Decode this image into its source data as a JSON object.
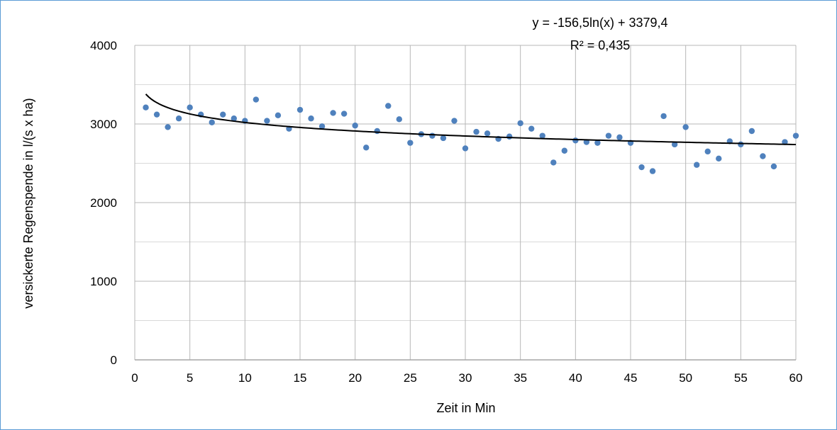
{
  "chart_data": {
    "type": "scatter",
    "xlabel": "Zeit in Min",
    "ylabel": "versickerte Regenspende in l/(s  x ha)",
    "xlim": [
      0,
      60
    ],
    "ylim": [
      0,
      4000
    ],
    "x_ticks": [
      0,
      5,
      10,
      15,
      20,
      25,
      30,
      35,
      40,
      45,
      50,
      55,
      60
    ],
    "y_ticks": [
      0,
      1000,
      2000,
      3000,
      4000
    ],
    "grid": true,
    "legend": "none",
    "marker_color": "#4f81bd",
    "trendline": {
      "type": "logarithmic",
      "a": -156.5,
      "b": 3379.4,
      "equation_label": "y = -156,5ln(x) + 3379,4",
      "r2_label": "R² = 0,435"
    },
    "series": [
      {
        "x": [
          1,
          2,
          3,
          4,
          5,
          6,
          7,
          8,
          9,
          10,
          11,
          12,
          13,
          14,
          15,
          16,
          17,
          18,
          19,
          20,
          21,
          22,
          23,
          24,
          25,
          26,
          27,
          28,
          29,
          30,
          31,
          32,
          33,
          34,
          35,
          36,
          37,
          38,
          39,
          40,
          41,
          42,
          43,
          44,
          45,
          46,
          47,
          48,
          49,
          50,
          51,
          52,
          53,
          54,
          55,
          56,
          57,
          58,
          59,
          60
        ],
        "y": [
          3210,
          3120,
          2960,
          3070,
          3210,
          3120,
          3020,
          3120,
          3070,
          3040,
          3310,
          3040,
          3110,
          2940,
          3180,
          3070,
          2970,
          3140,
          3130,
          2980,
          2700,
          2910,
          3230,
          3060,
          2760,
          2870,
          2850,
          2820,
          3040,
          2690,
          2900,
          2880,
          2810,
          2840,
          3010,
          2940,
          2850,
          2510,
          2660,
          2790,
          2770,
          2760,
          2850,
          2830,
          2760,
          2450,
          2400,
          3100,
          2740,
          2960,
          2480,
          2650,
          2560,
          2780,
          2740,
          2910,
          2590,
          2460,
          2770,
          2850
        ]
      }
    ]
  }
}
